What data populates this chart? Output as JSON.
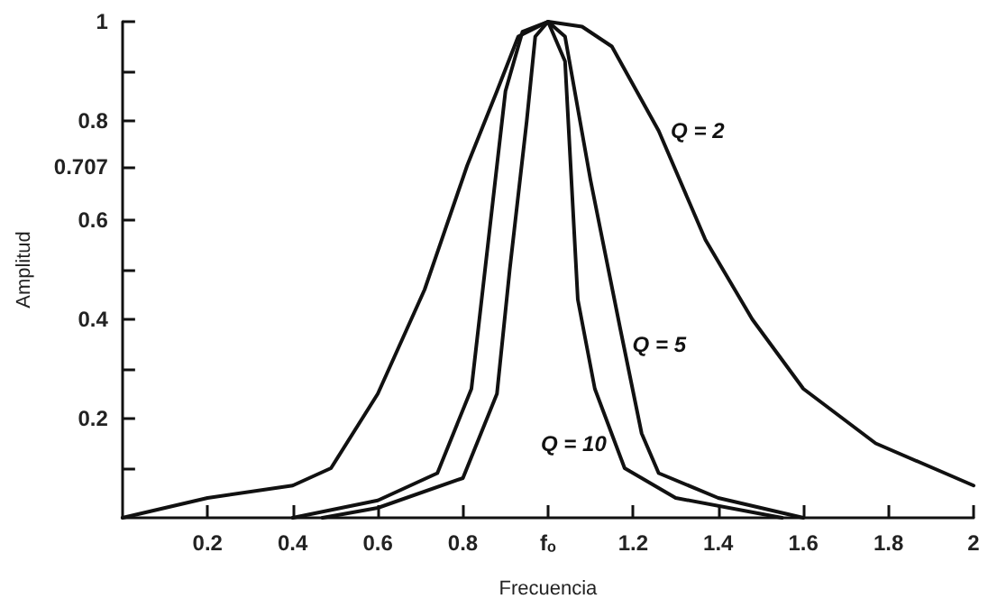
{
  "chart_data": {
    "type": "line",
    "xlabel": "Frecuencia",
    "ylabel": "Amplitud",
    "xlim": [
      0,
      2
    ],
    "ylim": [
      0,
      1
    ],
    "xticks": [
      0.2,
      0.4,
      0.6,
      0.8,
      {
        "value": 1,
        "label": "fₒ"
      },
      1.2,
      1.4,
      1.6,
      1.8,
      2
    ],
    "yticks": [
      {
        "value": 0.1,
        "label": null
      },
      0.2,
      {
        "value": 0.3,
        "label": null
      },
      0.4,
      {
        "value": 0.5,
        "label": null
      },
      0.6,
      0.707,
      0.8,
      {
        "value": 0.9,
        "label": null
      },
      1
    ],
    "grid": false,
    "marker": "none",
    "line_style": "solid",
    "series": [
      {
        "color": "#111111",
        "x": [
          0,
          0.2,
          0.4,
          0.49,
          0.6,
          0.71,
          0.81,
          0.88,
          0.93,
          1.0,
          1.08,
          1.15,
          1.26,
          1.37,
          1.48,
          1.6,
          1.77,
          2.0
        ],
        "values": [
          0,
          0.04,
          0.065,
          0.1,
          0.25,
          0.46,
          0.71,
          0.86,
          0.97,
          1.0,
          0.99,
          0.95,
          0.78,
          0.56,
          0.4,
          0.26,
          0.15,
          0.065
        ]
      },
      {
        "color": "#111111",
        "x": [
          0.4,
          0.6,
          0.74,
          0.82,
          0.86,
          0.9,
          0.94,
          1.0,
          1.04,
          1.1,
          1.17,
          1.22,
          1.26,
          1.4,
          1.6
        ],
        "values": [
          0,
          0.035,
          0.09,
          0.26,
          0.56,
          0.86,
          0.98,
          1.0,
          0.97,
          0.68,
          0.38,
          0.17,
          0.09,
          0.04,
          0
        ]
      },
      {
        "color": "#111111",
        "x": [
          0.47,
          0.6,
          0.8,
          0.88,
          0.91,
          0.95,
          0.97,
          1.0,
          1.04,
          1.07,
          1.11,
          1.18,
          1.3,
          1.55
        ],
        "values": [
          0,
          0.02,
          0.08,
          0.25,
          0.5,
          0.8,
          0.97,
          1.0,
          0.92,
          0.44,
          0.26,
          0.1,
          0.04,
          0
        ]
      }
    ],
    "annotations": [
      {
        "text": "Q = 2",
        "x": 1.28,
        "y": 0.78
      },
      {
        "text": "Q = 5",
        "x": 1.19,
        "y": 0.35
      },
      {
        "text": "Q = 10",
        "x": 1.15,
        "y": 0.15
      }
    ]
  }
}
